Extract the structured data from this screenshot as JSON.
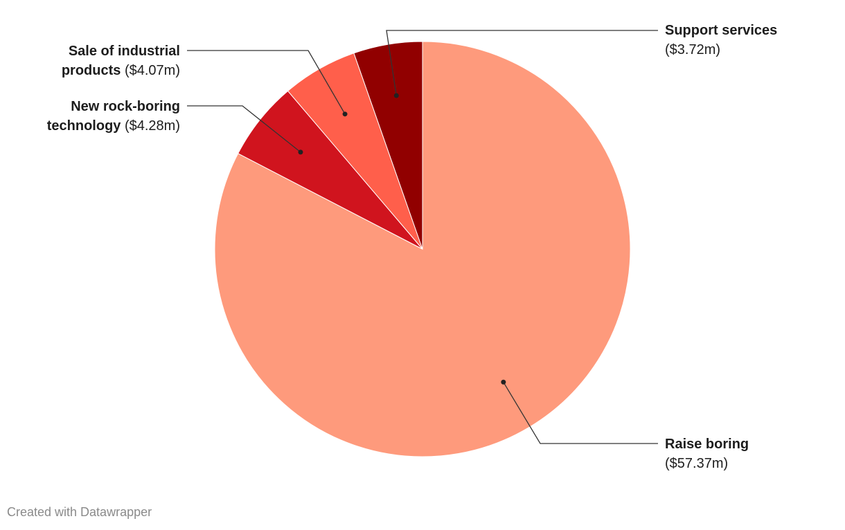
{
  "chart_data": {
    "type": "pie",
    "categories": [
      "Raise boring",
      "New rock-boring technology",
      "Sale of industrial products",
      "Support services"
    ],
    "values": [
      57.37,
      4.28,
      4.07,
      3.72
    ],
    "value_labels": [
      "($57.37m)",
      "($4.28m)",
      "($4.07m)",
      "($3.72m)"
    ],
    "colors": [
      "#fe9a7c",
      "#d0141e",
      "#ff5f4b",
      "#910000"
    ],
    "credit": "Created with Datawrapper"
  }
}
